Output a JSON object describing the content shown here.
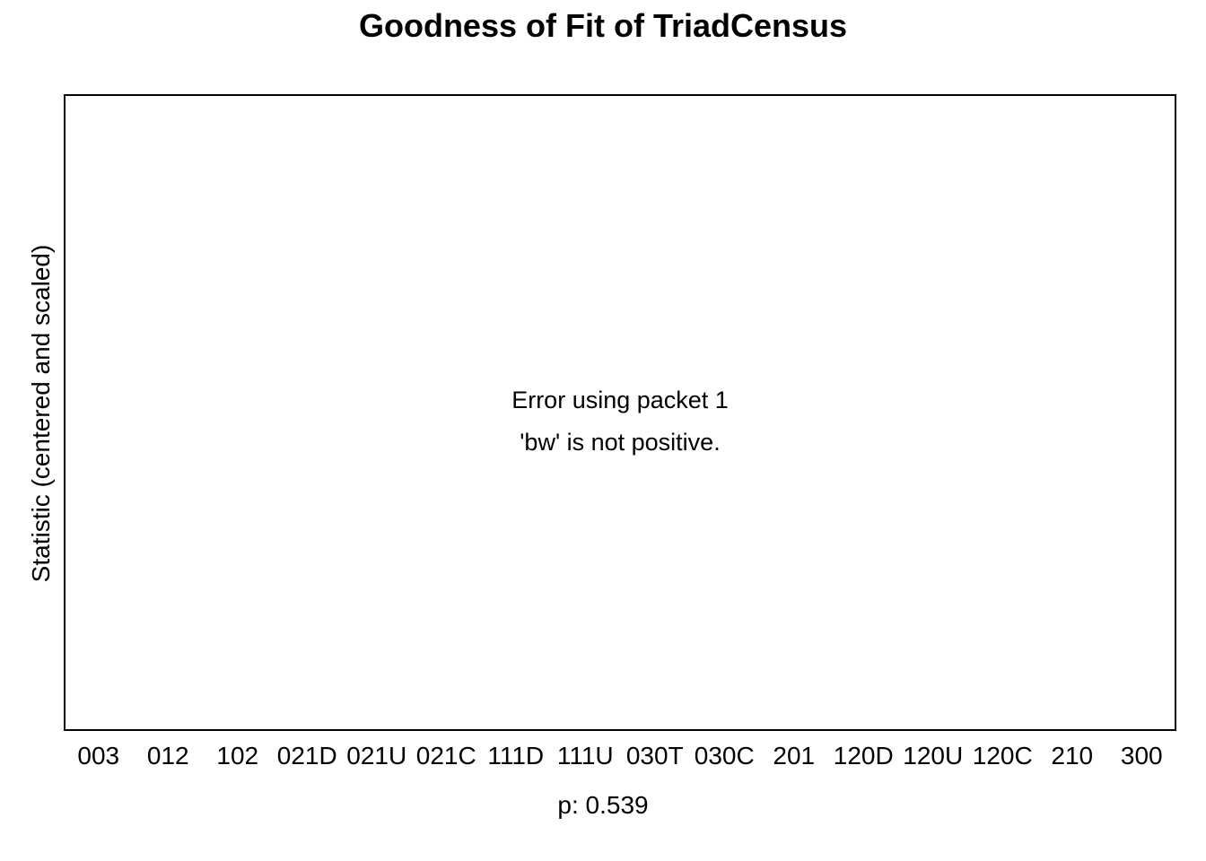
{
  "chart_data": {
    "type": "boxplot",
    "title": "Goodness of Fit of TriadCensus",
    "ylabel": "Statistic (centered and scaled)",
    "xlabel": "p: 0.539",
    "categories": [
      "003",
      "012",
      "102",
      "021D",
      "021U",
      "021C",
      "111D",
      "111U",
      "030T",
      "030C",
      "201",
      "120D",
      "120U",
      "120C",
      "210",
      "300"
    ],
    "series": [],
    "error": {
      "line1": "Error using packet 1",
      "line2": "'bw' is not positive."
    },
    "grid": false
  }
}
